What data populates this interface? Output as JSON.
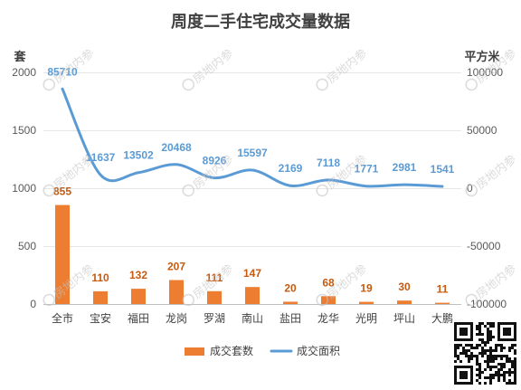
{
  "chart_data": {
    "type": "bar",
    "title": "周度二手住宅成交量数据",
    "ylabel": "套",
    "y2label": "平方米",
    "categories": [
      "全市",
      "宝安",
      "福田",
      "龙岗",
      "罗湖",
      "南山",
      "盐田",
      "龙华",
      "光明",
      "坪山",
      "大鹏"
    ],
    "series": [
      {
        "name": "成交套数",
        "type": "bar",
        "axis": "left",
        "color": "#ED7D31",
        "label_color": "#C55A11",
        "values": [
          855,
          110,
          132,
          207,
          111,
          147,
          20,
          68,
          19,
          30,
          11
        ]
      },
      {
        "name": "成交面积",
        "type": "line",
        "axis": "right",
        "smooth": true,
        "color": "#5B9BD5",
        "label_color": "#5B9BD5",
        "values": [
          85710,
          11637,
          13502,
          20468,
          8926,
          15597,
          2169,
          7118,
          1771,
          2981,
          1541
        ]
      }
    ],
    "ylim": [
      0,
      2000
    ],
    "yticks": [
      2000,
      1500,
      1000,
      500,
      0
    ],
    "y2lim": [
      -100000,
      100000
    ],
    "y2ticks": [
      100000,
      50000,
      0,
      -50000,
      -100000
    ],
    "grid": true,
    "legend": "bottom",
    "data_labels": true
  },
  "watermark": {
    "text": "房地内参",
    "color": "#c4c4c4"
  },
  "qr_code": {
    "icon": "qr-code-icon"
  }
}
